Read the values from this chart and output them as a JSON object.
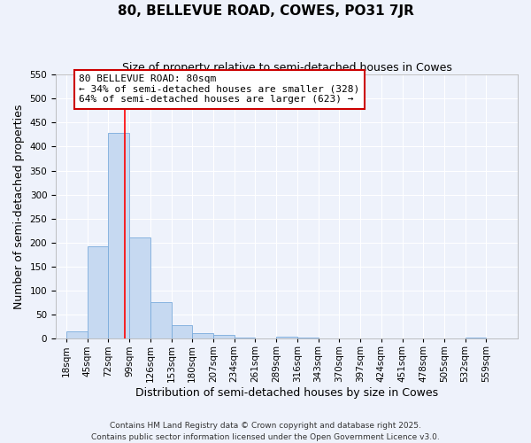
{
  "title": "80, BELLEVUE ROAD, COWES, PO31 7JR",
  "subtitle": "Size of property relative to semi-detached houses in Cowes",
  "xlabel": "Distribution of semi-detached houses by size in Cowes",
  "ylabel": "Number of semi-detached properties",
  "bar_values": [
    15,
    193,
    428,
    211,
    76,
    28,
    12,
    8,
    3,
    0,
    5,
    2,
    0,
    0,
    0,
    0,
    0,
    0,
    0,
    2,
    1
  ],
  "bin_labels": [
    "18sqm",
    "45sqm",
    "72sqm",
    "99sqm",
    "126sqm",
    "153sqm",
    "180sqm",
    "207sqm",
    "234sqm",
    "261sqm",
    "289sqm",
    "316sqm",
    "343sqm",
    "370sqm",
    "397sqm",
    "424sqm",
    "451sqm",
    "478sqm",
    "505sqm",
    "532sqm",
    "559sqm"
  ],
  "bar_color": "#c6d9f1",
  "bar_edge_color": "#7aabdc",
  "red_line_x": 80,
  "ylim": [
    0,
    550
  ],
  "yticks": [
    0,
    50,
    100,
    150,
    200,
    250,
    300,
    350,
    400,
    450,
    500,
    550
  ],
  "annotation_title": "80 BELLEVUE ROAD: 80sqm",
  "annotation_line1": "← 34% of semi-detached houses are smaller (328)",
  "annotation_line2": "64% of semi-detached houses are larger (623) →",
  "annotation_box_color": "#ffffff",
  "annotation_box_edge": "#cc0000",
  "footer1": "Contains HM Land Registry data © Crown copyright and database right 2025.",
  "footer2": "Contains public sector information licensed under the Open Government Licence v3.0.",
  "bg_color": "#eef2fb",
  "grid_color": "#ffffff",
  "title_fontsize": 11,
  "subtitle_fontsize": 9,
  "axis_label_fontsize": 9,
  "tick_fontsize": 7.5
}
